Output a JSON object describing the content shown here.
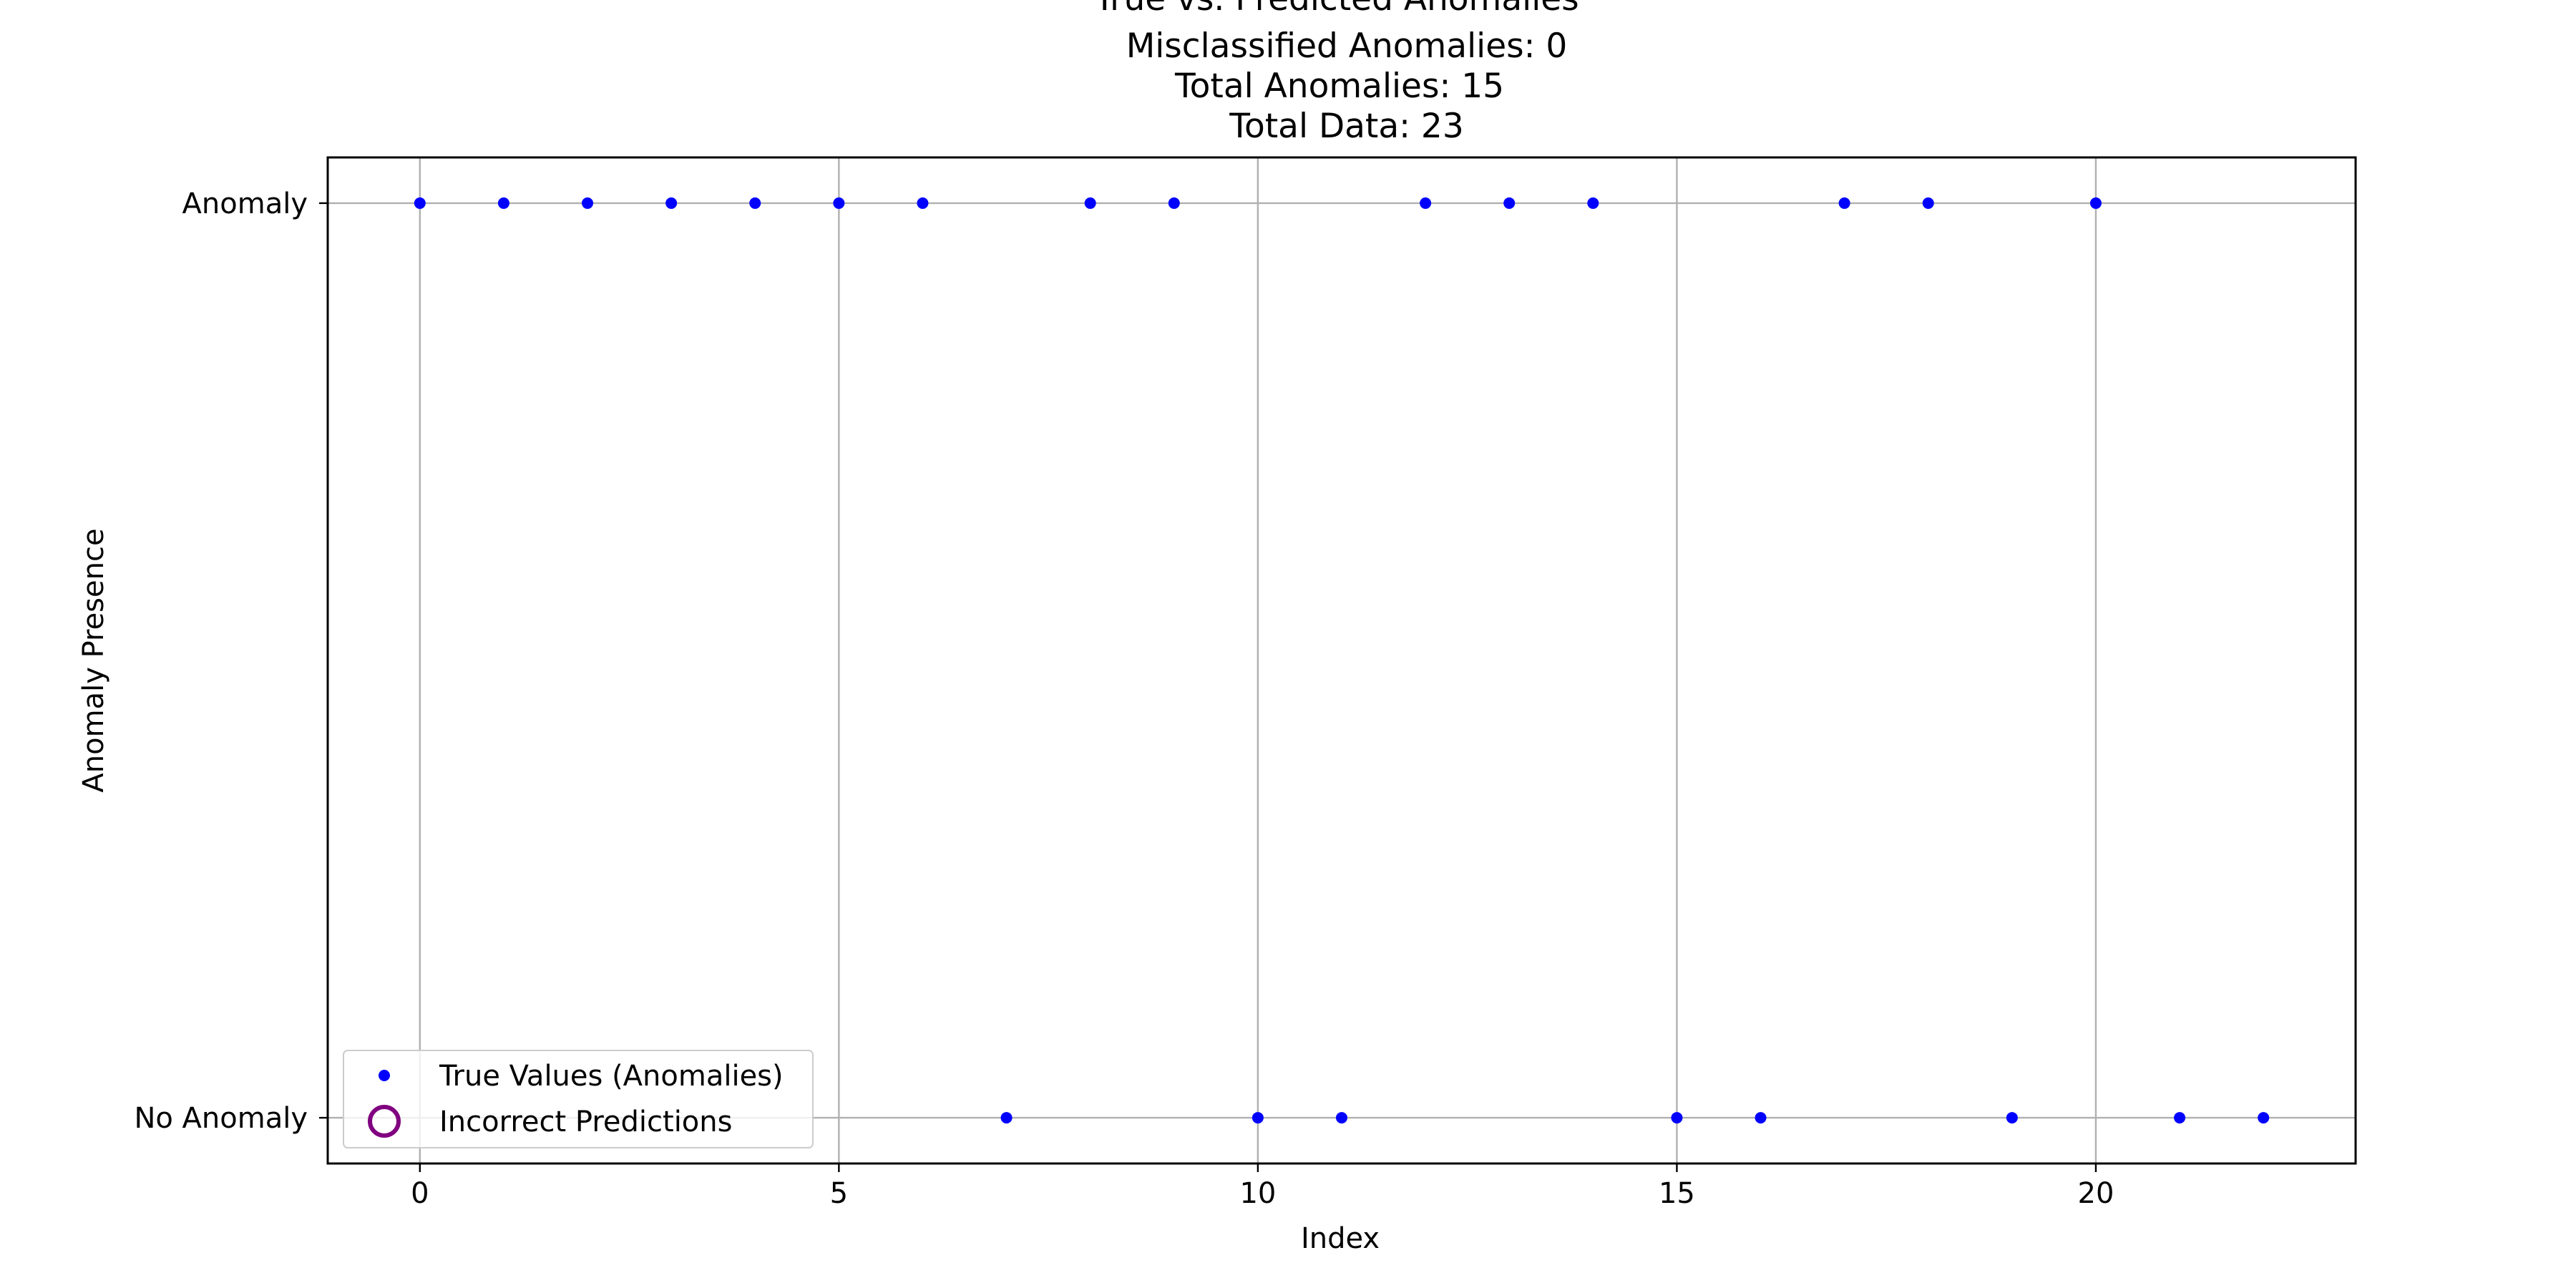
{
  "chart_data": {
    "type": "scatter",
    "title_lines": [
      "True vs. Predicted Anomalies",
      "Misclassified Anomalies: 0",
      "Total Anomalies: 15",
      "Total Data: 23"
    ],
    "xlabel": "Index",
    "ylabel": "Anomaly Presence",
    "xlim": [
      -1.1,
      23.1
    ],
    "ylim": [
      -0.05,
      1.05
    ],
    "x_ticks": [
      0,
      5,
      10,
      15,
      20
    ],
    "x_tick_labels": [
      "0",
      "5",
      "10",
      "15",
      "20"
    ],
    "y_ticks": [
      0,
      1
    ],
    "y_tick_labels": [
      "No Anomaly",
      "Anomaly"
    ],
    "grid": true,
    "legend_position": "lower-left",
    "series": [
      {
        "name": "True Values (Anomalies)",
        "marker": "dot",
        "color": "#0000ff",
        "x": [
          0,
          1,
          2,
          3,
          4,
          5,
          6,
          7,
          8,
          9,
          10,
          11,
          12,
          13,
          14,
          15,
          16,
          17,
          18,
          19,
          20,
          21,
          22
        ],
        "y": [
          1,
          1,
          1,
          1,
          1,
          1,
          1,
          0,
          1,
          1,
          0,
          0,
          1,
          1,
          1,
          0,
          0,
          1,
          1,
          0,
          1,
          0,
          0
        ]
      },
      {
        "name": "Incorrect Predictions",
        "marker": "open-circle",
        "color": "#800080",
        "x": [],
        "y": []
      }
    ]
  }
}
